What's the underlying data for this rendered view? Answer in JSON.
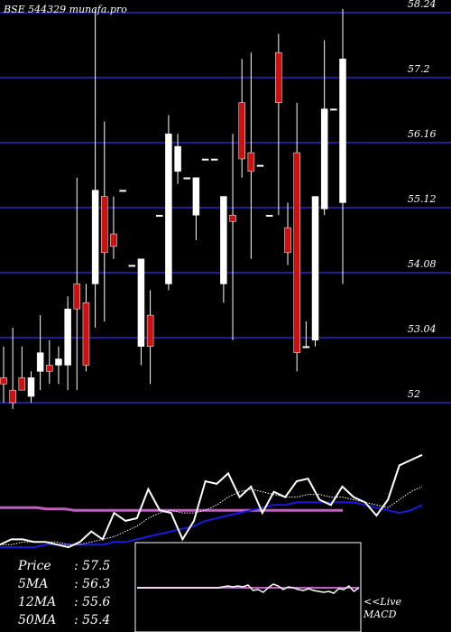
{
  "chart_data": {
    "type": "candlestick",
    "title": "BSE 544329 munafa.pro",
    "ylim": [
      51.6,
      58.3
    ],
    "y_ticks": [
      "58.24",
      "57.2",
      "56.16",
      "55.12",
      "54.08",
      "53.04",
      "52"
    ],
    "candles": [
      {
        "o": 52.4,
        "h": 52.9,
        "l": 52.0,
        "c": 52.3
      },
      {
        "o": 52.2,
        "h": 53.2,
        "l": 51.9,
        "c": 52.0
      },
      {
        "o": 52.4,
        "h": 52.9,
        "l": 52.2,
        "c": 52.2
      },
      {
        "o": 52.1,
        "h": 52.5,
        "l": 52.0,
        "c": 52.4
      },
      {
        "o": 52.5,
        "h": 53.4,
        "l": 52.2,
        "c": 52.8
      },
      {
        "o": 52.6,
        "h": 53.0,
        "l": 52.3,
        "c": 52.5
      },
      {
        "o": 52.6,
        "h": 52.9,
        "l": 52.3,
        "c": 52.7
      },
      {
        "o": 52.6,
        "h": 53.7,
        "l": 52.2,
        "c": 53.5
      },
      {
        "o": 53.9,
        "h": 55.6,
        "l": 52.2,
        "c": 53.5
      },
      {
        "o": 53.6,
        "h": 53.9,
        "l": 52.5,
        "c": 52.6
      },
      {
        "o": 53.9,
        "h": 58.3,
        "l": 53.2,
        "c": 55.4
      },
      {
        "o": 55.3,
        "h": 56.5,
        "l": 53.3,
        "c": 54.4
      },
      {
        "o": 54.7,
        "h": 55.3,
        "l": 54.3,
        "c": 54.5
      },
      {
        "o": 55.4,
        "h": 55.4,
        "l": 55.4,
        "c": 55.4
      },
      {
        "o": 54.2,
        "h": 54.2,
        "l": 54.2,
        "c": 54.2
      },
      {
        "o": 52.9,
        "h": 54.3,
        "l": 52.6,
        "c": 54.3
      },
      {
        "o": 53.4,
        "h": 53.8,
        "l": 52.3,
        "c": 52.9
      },
      {
        "o": 55.0,
        "h": 55.0,
        "l": 55.0,
        "c": 55.0
      },
      {
        "o": 53.9,
        "h": 56.6,
        "l": 53.8,
        "c": 56.3
      },
      {
        "o": 55.7,
        "h": 56.3,
        "l": 55.5,
        "c": 56.1
      },
      {
        "o": 55.6,
        "h": 55.6,
        "l": 55.6,
        "c": 55.6
      },
      {
        "o": 55.0,
        "h": 55.6,
        "l": 54.6,
        "c": 55.6
      },
      {
        "o": 55.9,
        "h": 55.9,
        "l": 55.9,
        "c": 55.9
      },
      {
        "o": 55.9,
        "h": 55.9,
        "l": 55.9,
        "c": 55.9
      },
      {
        "o": 53.9,
        "h": 55.3,
        "l": 53.6,
        "c": 55.3
      },
      {
        "o": 55.0,
        "h": 56.3,
        "l": 53.0,
        "c": 54.9
      },
      {
        "o": 56.8,
        "h": 57.5,
        "l": 55.6,
        "c": 55.9
      },
      {
        "o": 56.0,
        "h": 57.6,
        "l": 54.3,
        "c": 55.7
      },
      {
        "o": 55.8,
        "h": 55.8,
        "l": 55.8,
        "c": 55.8
      },
      {
        "o": 55.0,
        "h": 55.0,
        "l": 55.0,
        "c": 55.0
      },
      {
        "o": 57.6,
        "h": 57.9,
        "l": 55.0,
        "c": 56.8
      },
      {
        "o": 54.8,
        "h": 55.2,
        "l": 54.2,
        "c": 54.4
      },
      {
        "o": 56.0,
        "h": 56.8,
        "l": 52.5,
        "c": 52.8
      },
      {
        "o": 52.9,
        "h": 53.3,
        "l": 52.9,
        "c": 52.9
      },
      {
        "o": 53.0,
        "h": 55.3,
        "l": 52.9,
        "c": 55.3
      },
      {
        "o": 55.1,
        "h": 57.8,
        "l": 55.0,
        "c": 56.7
      },
      {
        "o": 56.7,
        "h": 56.7,
        "l": 56.7,
        "c": 56.7
      },
      {
        "o": 55.2,
        "h": 58.3,
        "l": 53.9,
        "c": 57.5
      }
    ],
    "ma_panel": {
      "price": [
        54.1,
        54.3,
        54.3,
        54.2,
        54.2,
        54.1,
        54.0,
        54.2,
        54.6,
        54.3,
        55.3,
        55.0,
        55.1,
        56.2,
        55.4,
        55.3,
        54.3,
        55.0,
        56.5,
        56.4,
        56.8,
        55.9,
        56.3,
        55.3,
        56.1,
        55.9,
        56.5,
        56.6,
        55.8,
        55.6,
        56.3,
        55.9,
        55.7,
        55.2,
        55.8,
        57.1,
        57.3,
        57.5
      ],
      "ma5": [
        54.1,
        54.1,
        54.2,
        54.2,
        54.2,
        54.2,
        54.1,
        54.1,
        54.2,
        54.3,
        54.4,
        54.6,
        54.8,
        55.1,
        55.3,
        55.4,
        55.3,
        55.3,
        55.4,
        55.6,
        55.9,
        56.1,
        56.2,
        56.1,
        56.0,
        55.9,
        55.9,
        56.0,
        56.0,
        55.9,
        55.9,
        55.8,
        55.7,
        55.6,
        55.5,
        55.8,
        56.1,
        56.3
      ],
      "ma12": [
        54.0,
        54.0,
        54.0,
        54.0,
        54.1,
        54.1,
        54.1,
        54.1,
        54.1,
        54.1,
        54.2,
        54.2,
        54.3,
        54.4,
        54.5,
        54.6,
        54.7,
        54.8,
        55.0,
        55.1,
        55.2,
        55.3,
        55.4,
        55.5,
        55.6,
        55.6,
        55.7,
        55.7,
        55.7,
        55.7,
        55.7,
        55.7,
        55.6,
        55.5,
        55.4,
        55.3,
        55.4,
        55.6
      ],
      "ma50": [
        55.5,
        55.5,
        55.5,
        55.5,
        55.5,
        55.45,
        55.45,
        55.45,
        55.4,
        55.4,
        55.4,
        55.4,
        55.4,
        55.4,
        55.4,
        55.4,
        55.4,
        55.4,
        55.4,
        55.4,
        55.4,
        55.4,
        55.4,
        55.4,
        55.4,
        55.4,
        55.4,
        55.4,
        55.4,
        55.4,
        55.4,
        55.4,
        55.4,
        55.4,
        55.4,
        55.4,
        55.4,
        55.4
      ],
      "labels": [
        {
          "key": "Price",
          "value": "57.5"
        },
        {
          "key": "5MA",
          "value": "56.3"
        },
        {
          "key": "12MA",
          "value": "55.6"
        },
        {
          "key": "50MA",
          "value": "55.4"
        }
      ]
    },
    "macd_panel": {
      "macd": [
        0.0,
        0.0,
        0.0,
        0.0,
        0.0,
        0.0,
        0.0,
        0.0,
        0.0,
        0.0,
        0.0,
        0.0,
        0.0,
        0.0,
        0.0,
        0.0,
        0.0,
        0.05,
        0.1,
        0.05,
        0.1,
        0.05,
        0.15,
        -0.15,
        -0.1,
        -0.25,
        0.0,
        0.2,
        0.1,
        -0.1,
        0.05,
        0.0,
        -0.1,
        -0.15,
        -0.05,
        -0.15,
        -0.2,
        -0.25,
        -0.2,
        -0.3,
        -0.05,
        -0.1,
        0.1,
        -0.2,
        0.0
      ],
      "signal": [
        0.0,
        0.0,
        0.0,
        0.0,
        0.0,
        0.0,
        0.0,
        0.0,
        0.0,
        0.0,
        0.0,
        0.0,
        0.0,
        0.0,
        0.0,
        0.0,
        0.0,
        0.0,
        0.0,
        0.0,
        0.0,
        0.0,
        0.0,
        0.0,
        0.0,
        0.0,
        0.0,
        0.0,
        0.0,
        0.0,
        0.0,
        0.0,
        0.0,
        0.0,
        0.0,
        0.0,
        0.0,
        0.0,
        0.0,
        0.0,
        0.0,
        0.0,
        0.0,
        0.0,
        0.0
      ],
      "label_live": "<<Live",
      "label_name": "MACD"
    }
  },
  "colors": {
    "background": "#000000",
    "grid": "#1f1f8f",
    "up": "#ffffff",
    "down": "#cc1111",
    "ma50": "#c060c0",
    "ma12": "#1a1adc",
    "price_line": "#ffffff",
    "macd_signal": "#c060c0"
  }
}
